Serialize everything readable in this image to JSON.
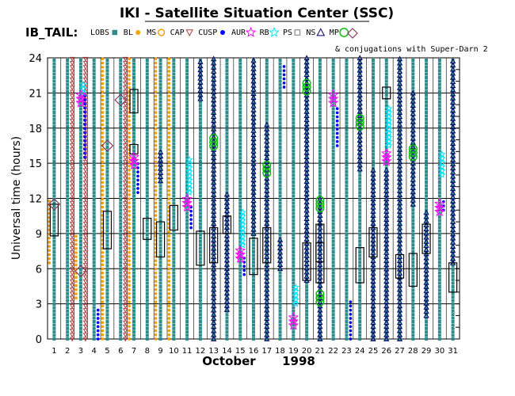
{
  "title": "IKI - Satellite Situation Center (SSC)",
  "subtitle": "IB_TAIL:",
  "legend": {
    "items": [
      {
        "label": "LOBS",
        "marker": "square",
        "color": "#2e8b8b"
      },
      {
        "label": "BL",
        "marker": "dot",
        "color": "#f5a000"
      },
      {
        "label": "MS",
        "marker": "dot-ring",
        "color": "#f5a000"
      },
      {
        "label": "CAP",
        "marker": "triangle-down",
        "color": "#b04040"
      },
      {
        "label": "CUSP",
        "marker": "dot",
        "color": "#0000ff"
      },
      {
        "label": "AUR",
        "marker": "star",
        "color": "#ff00ff"
      },
      {
        "label": "RB",
        "marker": "star",
        "color": "#00e5ff"
      },
      {
        "label": "PS",
        "marker": "square-open",
        "color": "#777777"
      },
      {
        "label": "NS",
        "marker": "triangle-up",
        "color": "#000066"
      },
      {
        "label": "MP",
        "marker": "circle",
        "color": "#00bb00"
      }
    ],
    "conjugation_label": "& conjugations with Super-Darn 2"
  },
  "chart_data": {
    "type": "bar",
    "title": "IKI - Satellite Situation Center (SSC)",
    "ylabel": "Universal time (hours)",
    "xlabel": "October",
    "year": "1998",
    "ylim": [
      0,
      24
    ],
    "yticks": [
      0,
      3,
      6,
      9,
      12,
      15,
      18,
      21,
      24
    ],
    "days": [
      1,
      2,
      3,
      4,
      5,
      6,
      7,
      8,
      9,
      10,
      11,
      12,
      13,
      14,
      15,
      16,
      17,
      18,
      19,
      20,
      21,
      22,
      23,
      24,
      25,
      26,
      27,
      28,
      29,
      30,
      31
    ],
    "columns": [
      {
        "day": 1,
        "series": [
          {
            "type": "LOBS",
            "from": 0,
            "to": 24
          },
          {
            "type": "BL",
            "from": 6.5,
            "to": 12
          }
        ],
        "boxes": [
          [
            8.8,
            11.5
          ]
        ],
        "diamonds": [
          11.5
        ]
      },
      {
        "day": 2,
        "series": [
          {
            "type": "LOBS",
            "from": 0,
            "to": 24
          },
          {
            "type": "CAP",
            "from": 0,
            "to": 24
          }
        ],
        "boxes": [],
        "diamonds": []
      },
      {
        "day": 3,
        "series": [
          {
            "type": "LOBS",
            "from": 0,
            "to": 24
          },
          {
            "type": "CAP",
            "from": 0,
            "to": 24
          },
          {
            "type": "CUSP",
            "from": 15.5,
            "to": 21
          },
          {
            "type": "RB",
            "from": 21,
            "to": 22
          },
          {
            "type": "BL",
            "from": 3.5,
            "to": 9
          }
        ],
        "boxes": [],
        "diamonds": [
          5.8
        ]
      },
      {
        "day": 4,
        "series": [
          {
            "type": "LOBS",
            "from": 0,
            "to": 24
          },
          {
            "type": "CUSP",
            "from": 0,
            "to": 2.5
          }
        ],
        "boxes": [],
        "diamonds": []
      },
      {
        "day": 5,
        "series": [
          {
            "type": "LOBS",
            "from": 0,
            "to": 24
          },
          {
            "type": "BL",
            "from": 0,
            "to": 24
          }
        ],
        "boxes": [
          [
            7.7,
            10.9
          ]
        ],
        "diamonds": [
          16.5
        ]
      },
      {
        "day": 6,
        "series": [
          {
            "type": "LOBS",
            "from": 0,
            "to": 24
          },
          {
            "type": "CAP",
            "from": 0,
            "to": 24
          }
        ],
        "boxes": [],
        "diamonds": [
          20.4
        ]
      },
      {
        "day": 7,
        "series": [
          {
            "type": "LOBS",
            "from": 0,
            "to": 24
          },
          {
            "type": "BL",
            "from": 0,
            "to": 24
          },
          {
            "type": "CUSP",
            "from": 12.5,
            "to": 15
          }
        ],
        "boxes": [
          [
            19.3,
            21.3
          ],
          [
            15.8,
            16.6
          ]
        ],
        "diamonds": []
      },
      {
        "day": 8,
        "series": [
          {
            "type": "LOBS",
            "from": 0,
            "to": 24
          }
        ],
        "boxes": [
          [
            8.5,
            10.3
          ]
        ],
        "diamonds": []
      },
      {
        "day": 9,
        "series": [
          {
            "type": "LOBS",
            "from": 0,
            "to": 24
          },
          {
            "type": "BL",
            "from": 0,
            "to": 24
          },
          {
            "type": "NS",
            "from": 13.5,
            "to": 16
          }
        ],
        "boxes": [
          [
            7,
            10
          ]
        ],
        "diamonds": []
      },
      {
        "day": 10,
        "series": [
          {
            "type": "LOBS",
            "from": 0,
            "to": 24
          },
          {
            "type": "BL",
            "from": 0,
            "to": 24
          }
        ],
        "boxes": [
          [
            9.3,
            11.4
          ]
        ],
        "diamonds": []
      },
      {
        "day": 11,
        "series": [
          {
            "type": "LOBS",
            "from": 0,
            "to": 24
          },
          {
            "type": "CUSP",
            "from": 9.5,
            "to": 11.5
          },
          {
            "type": "RB",
            "from": 12.5,
            "to": 15.5
          }
        ],
        "boxes": [],
        "diamonds": []
      },
      {
        "day": 12,
        "series": [
          {
            "type": "LOBS",
            "from": 0,
            "to": 24
          },
          {
            "type": "NS",
            "from": 20.5,
            "to": 24
          }
        ],
        "boxes": [
          [
            6.3,
            9.2
          ]
        ],
        "diamonds": []
      },
      {
        "day": 13,
        "series": [
          {
            "type": "LOBS",
            "from": 0,
            "to": 24
          },
          {
            "type": "NS",
            "from": 0,
            "to": 24
          }
        ],
        "boxes": [
          [
            6.5,
            9.5
          ]
        ],
        "diamonds": []
      },
      {
        "day": 14,
        "series": [
          {
            "type": "LOBS",
            "from": 0,
            "to": 24
          },
          {
            "type": "NS",
            "from": 2.5,
            "to": 12.5
          }
        ],
        "boxes": [
          [
            9,
            10.5
          ]
        ],
        "diamonds": []
      },
      {
        "day": 15,
        "series": [
          {
            "type": "LOBS",
            "from": 0,
            "to": 24
          },
          {
            "type": "CUSP",
            "from": 5.5,
            "to": 7
          },
          {
            "type": "RB",
            "from": 8,
            "to": 11
          }
        ],
        "boxes": [],
        "diamonds": []
      },
      {
        "day": 16,
        "series": [
          {
            "type": "LOBS",
            "from": 0,
            "to": 24
          },
          {
            "type": "NS",
            "from": 9,
            "to": 24
          }
        ],
        "boxes": [
          [
            5.5,
            8.6
          ]
        ],
        "diamonds": []
      },
      {
        "day": 17,
        "series": [
          {
            "type": "LOBS",
            "from": 0,
            "to": 24
          },
          {
            "type": "NS",
            "from": 0,
            "to": 18.5
          }
        ],
        "boxes": [
          [
            6.5,
            9.5
          ]
        ],
        "diamonds": []
      },
      {
        "day": 18,
        "series": [
          {
            "type": "LOBS",
            "from": 0,
            "to": 24
          },
          {
            "type": "NS",
            "from": 6,
            "to": 8.5
          },
          {
            "type": "CUSP",
            "from": 21.5,
            "to": 23.5
          }
        ],
        "boxes": [],
        "diamonds": []
      },
      {
        "day": 19,
        "series": [
          {
            "type": "LOBS",
            "from": 0,
            "to": 24
          },
          {
            "type": "RB",
            "from": 3,
            "to": 4.5
          }
        ],
        "boxes": [],
        "diamonds": []
      },
      {
        "day": 20,
        "series": [
          {
            "type": "LOBS",
            "from": 0,
            "to": 24
          },
          {
            "type": "NS",
            "from": 5,
            "to": 24
          }
        ],
        "boxes": [
          [
            5,
            8.2
          ]
        ],
        "diamonds": []
      },
      {
        "day": 21,
        "series": [
          {
            "type": "LOBS",
            "from": 0,
            "to": 24
          },
          {
            "type": "NS",
            "from": 0,
            "to": 12
          }
        ],
        "boxes": [
          [
            4.8,
            8.2
          ],
          [
            6.6,
            9.8
          ]
        ],
        "diamonds": []
      },
      {
        "day": 22,
        "series": [
          {
            "type": "LOBS",
            "from": 0,
            "to": 24
          },
          {
            "type": "CUSP",
            "from": 16.5,
            "to": 20
          }
        ],
        "boxes": [],
        "diamonds": []
      },
      {
        "day": 23,
        "series": [
          {
            "type": "LOBS",
            "from": 0,
            "to": 24
          },
          {
            "type": "CUSP",
            "from": 0,
            "to": 3.5
          }
        ],
        "boxes": [],
        "diamonds": []
      },
      {
        "day": 24,
        "series": [
          {
            "type": "LOBS",
            "from": 0,
            "to": 24
          },
          {
            "type": "NS",
            "from": 14.5,
            "to": 24
          }
        ],
        "boxes": [
          [
            4.8,
            7.8
          ]
        ],
        "diamonds": []
      },
      {
        "day": 25,
        "series": [
          {
            "type": "LOBS",
            "from": 0,
            "to": 24
          },
          {
            "type": "NS",
            "from": 0,
            "to": 14.5
          }
        ],
        "boxes": [
          [
            7,
            9.5
          ]
        ],
        "diamonds": []
      },
      {
        "day": 26,
        "series": [
          {
            "type": "LOBS",
            "from": 0,
            "to": 24
          },
          {
            "type": "NS",
            "from": 0,
            "to": 14.5
          },
          {
            "type": "RB",
            "from": 16.5,
            "to": 20
          }
        ],
        "boxes": [
          [
            20.5,
            21.5
          ]
        ],
        "diamonds": []
      },
      {
        "day": 27,
        "series": [
          {
            "type": "LOBS",
            "from": 0,
            "to": 24
          },
          {
            "type": "NS",
            "from": 0,
            "to": 24
          }
        ],
        "boxes": [
          [
            5.2,
            7.2
          ]
        ],
        "diamonds": []
      },
      {
        "day": 28,
        "series": [
          {
            "type": "LOBS",
            "from": 0,
            "to": 24
          },
          {
            "type": "NS",
            "from": 11.5,
            "to": 21
          }
        ],
        "boxes": [
          [
            4.5,
            7.3
          ]
        ],
        "diamonds": []
      },
      {
        "day": 29,
        "series": [
          {
            "type": "LOBS",
            "from": 0,
            "to": 24
          },
          {
            "type": "NS",
            "from": 2,
            "to": 11
          }
        ],
        "boxes": [
          [
            7.3,
            9.8
          ]
        ],
        "diamonds": []
      },
      {
        "day": 30,
        "series": [
          {
            "type": "LOBS",
            "from": 0,
            "to": 24
          },
          {
            "type": "RB",
            "from": 14,
            "to": 16
          },
          {
            "type": "CUSP",
            "from": 11,
            "to": 12
          }
        ],
        "boxes": [],
        "diamonds": []
      },
      {
        "day": 31,
        "series": [
          {
            "type": "LOBS",
            "from": 0,
            "to": 24
          },
          {
            "type": "NS",
            "from": 6.5,
            "to": 24
          }
        ],
        "boxes": [
          [
            4,
            6.5
          ]
        ],
        "diamonds": []
      }
    ],
    "aur_markers": [
      {
        "day": 3,
        "t": 20.5
      },
      {
        "day": 7,
        "t": 15.2
      },
      {
        "day": 11,
        "t": 11.6
      },
      {
        "day": 15,
        "t": 7.2
      },
      {
        "day": 19,
        "t": 1.5
      },
      {
        "day": 22,
        "t": 20.5
      },
      {
        "day": 26,
        "t": 15.5
      },
      {
        "day": 30,
        "t": 11.2
      }
    ],
    "mp_markers": [
      {
        "day": 13,
        "t": 16.8
      },
      {
        "day": 17,
        "t": 14.5
      },
      {
        "day": 20,
        "t": 21.5
      },
      {
        "day": 21,
        "t": 3.5
      },
      {
        "day": 21,
        "t": 11.5
      },
      {
        "day": 24,
        "t": 18.5
      },
      {
        "day": 28,
        "t": 15.9
      }
    ],
    "grid": true
  }
}
